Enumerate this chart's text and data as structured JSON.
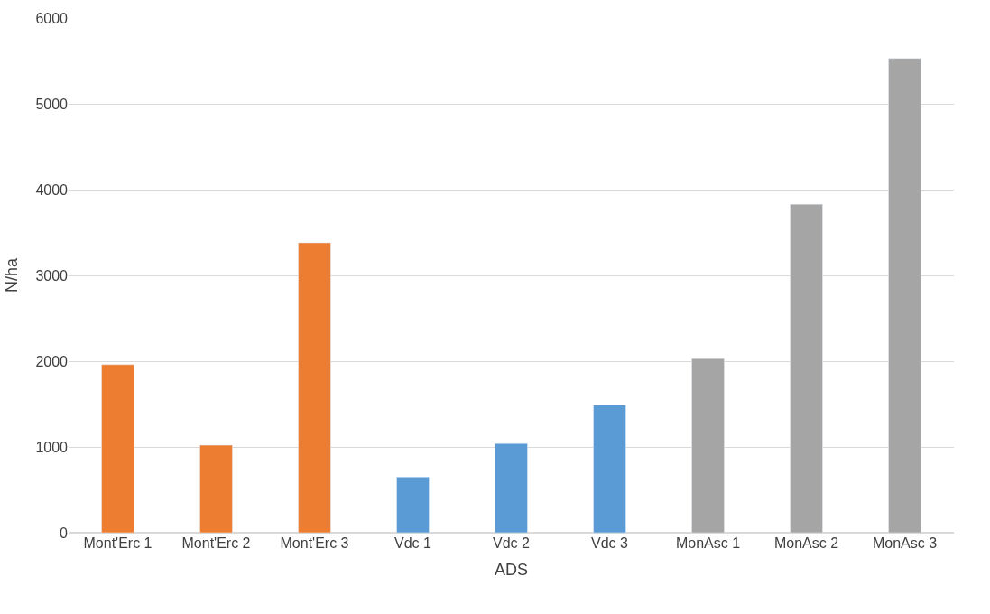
{
  "chart_data": {
    "type": "bar",
    "xlabel": "ADS",
    "ylabel": "N/ha",
    "categories": [
      "Mont'Erc 1",
      "Mont'Erc 2",
      "Mont'Erc 3",
      "Vdc 1",
      "Vdc 2",
      "Vdc 3",
      "MonAsc 1",
      "MonAsc 2",
      "MonAsc 3"
    ],
    "values": [
      1960,
      1020,
      3380,
      650,
      1040,
      1490,
      2030,
      3830,
      5530
    ],
    "colors": [
      "#ed7d31",
      "#ed7d31",
      "#ed7d31",
      "#5b9bd5",
      "#5b9bd5",
      "#5b9bd5",
      "#a5a5a5",
      "#a5a5a5",
      "#a5a5a5"
    ],
    "ylim": [
      0,
      6000
    ],
    "yticks": [
      0,
      1000,
      2000,
      3000,
      4000,
      5000,
      6000
    ],
    "grid": "y"
  }
}
